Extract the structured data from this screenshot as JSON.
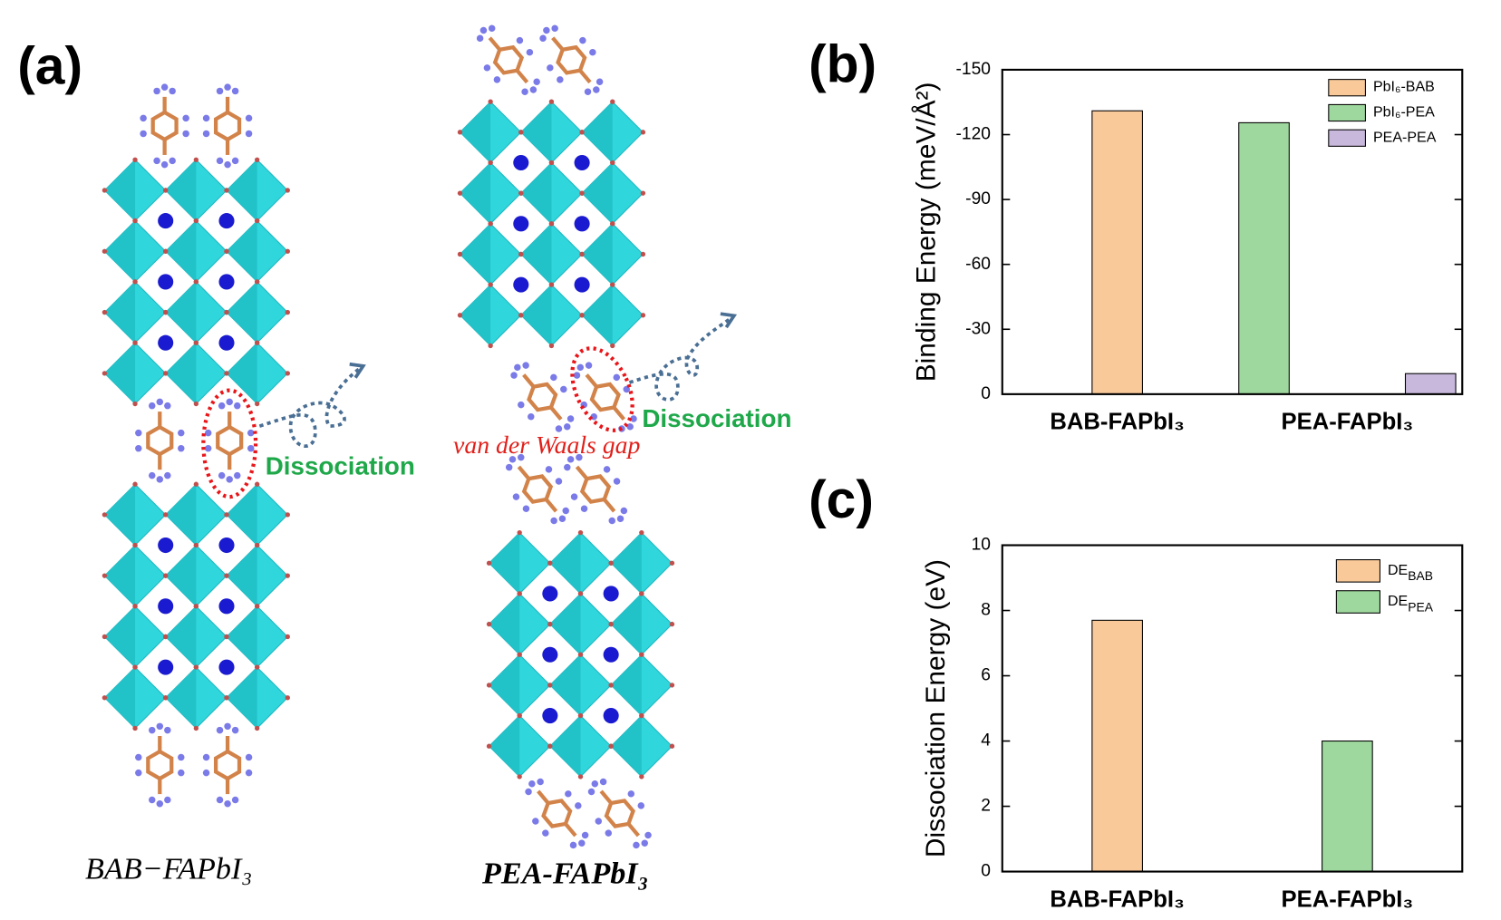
{
  "panel_a": {
    "label": "(a)",
    "annotations": [
      "Dissociation",
      "Dissociation",
      "van der Waals gap"
    ],
    "structures": [
      "BAB−FAPbI₃",
      "PEA-FAPbI₃"
    ]
  },
  "chart_data": [
    {
      "type": "bar",
      "panel_label": "(b)",
      "ylabel": "Binding Energy (meV/Å²)",
      "categories": [
        "BAB-FAPbI₃",
        "PEA-FAPbI₃"
      ],
      "series": [
        {
          "name": "PbI₆-BAB",
          "color": "#f9c99a",
          "values": [
            -131,
            null
          ]
        },
        {
          "name": "PbI₆-PEA",
          "color": "#9ed89e",
          "values": [
            null,
            -125.5
          ]
        },
        {
          "name": "PEA-PEA",
          "color": "#c8b8dc",
          "values": [
            null,
            -9.5
          ]
        }
      ],
      "ylim": [
        0,
        -150
      ],
      "yticks": [
        0,
        -30,
        -60,
        -90,
        -120,
        -150
      ]
    },
    {
      "type": "bar",
      "panel_label": "(c)",
      "ylabel": "Dissociation  Energy (eV)",
      "categories": [
        "BAB-FAPbI₃",
        "PEA-FAPbI₃"
      ],
      "series": [
        {
          "name": "DE",
          "subscript": "BAB",
          "color": "#f9c99a",
          "values": [
            7.7,
            null
          ]
        },
        {
          "name": "DE",
          "subscript": "PEA",
          "color": "#9ed89e",
          "values": [
            null,
            4.0
          ]
        }
      ],
      "ylim": [
        0,
        10
      ],
      "yticks": [
        0,
        2,
        4,
        6,
        8,
        10
      ]
    }
  ]
}
